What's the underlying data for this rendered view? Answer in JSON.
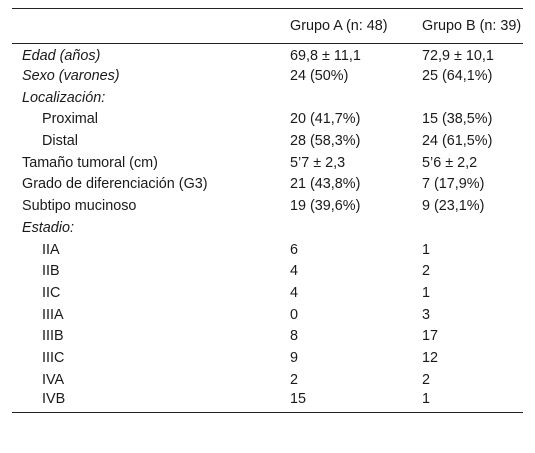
{
  "table": {
    "header": [
      "",
      "Grupo A (n: 48)",
      "Grupo B (n: 39)"
    ],
    "rows": [
      [
        "Edad (años)",
        "69,8 ± 11,1",
        "72,9 ± 10,1"
      ],
      [
        "Sexo (varones)",
        "24 (50%)",
        "25 (64,1%)"
      ],
      [
        "Localización:",
        "",
        ""
      ],
      [
        "Proximal",
        "20 (41,7%)",
        "15 (38,5%)"
      ],
      [
        "Distal",
        "28 (58,3%)",
        "24 (61,5%)"
      ],
      [
        "Tamaño tumoral (cm)",
        "5’7 ± 2,3",
        "5’6 ± 2,2"
      ],
      [
        "Grado de diferenciación (G3)",
        "21 (43,8%)",
        "7 (17,9%)"
      ],
      [
        "Subtipo mucinoso",
        "19 (39,6%)",
        "9 (23,1%)"
      ],
      [
        "Estadio:",
        "",
        ""
      ],
      [
        "IIA",
        "6",
        "1"
      ],
      [
        "IIB",
        "4",
        "2"
      ],
      [
        "IIC",
        "4",
        "1"
      ],
      [
        "IIIA",
        "0",
        "3"
      ],
      [
        "IIIB",
        "8",
        "17"
      ],
      [
        "IIIC",
        "9",
        "12"
      ],
      [
        "IVA",
        "2",
        "2"
      ],
      [
        "IVB",
        "15",
        "1"
      ]
    ]
  }
}
